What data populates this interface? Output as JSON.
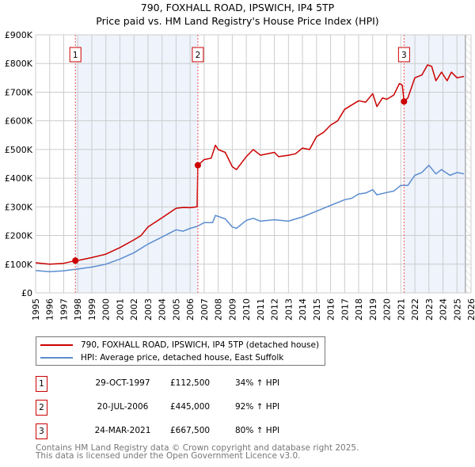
{
  "title": "790, FOXHALL ROAD, IPSWICH, IP4 5TP",
  "subtitle": "Price paid vs. HM Land Registry's House Price Index (HPI)",
  "colors": {
    "property": "#cc0000",
    "hpi": "#5b8dd0",
    "shade": "#eef3fc",
    "grid": "#cccccc"
  },
  "chart_data": {
    "type": "line",
    "title": "790, FOXHALL ROAD, IPSWICH, IP4 5TP",
    "subtitle": "Price paid vs. HM Land Registry's House Price Index (HPI)",
    "xlim": [
      1995,
      2026
    ],
    "ylim": [
      0,
      900000
    ],
    "grid": true,
    "x_ticks": [
      "1995",
      "1996",
      "1997",
      "1998",
      "1999",
      "2000",
      "2001",
      "2002",
      "2003",
      "2004",
      "2005",
      "2006",
      "2007",
      "2008",
      "2009",
      "2010",
      "2011",
      "2012",
      "2013",
      "2014",
      "2015",
      "2016",
      "2017",
      "2018",
      "2019",
      "2020",
      "2021",
      "2022",
      "2023",
      "2024",
      "2025",
      "2026"
    ],
    "y_ticks": [
      {
        "v": 0,
        "label": "£0"
      },
      {
        "v": 100000,
        "label": "£100K"
      },
      {
        "v": 200000,
        "label": "£200K"
      },
      {
        "v": 300000,
        "label": "£300K"
      },
      {
        "v": 400000,
        "label": "£400K"
      },
      {
        "v": 500000,
        "label": "£500K"
      },
      {
        "v": 600000,
        "label": "£600K"
      },
      {
        "v": 700000,
        "label": "£700K"
      },
      {
        "v": 800000,
        "label": "£800K"
      },
      {
        "v": 900000,
        "label": "£900K"
      }
    ],
    "shaded_ranges": [
      [
        1997.83,
        2006.55
      ],
      [
        2021.23,
        2025.6
      ]
    ],
    "hatched_from": 2025.6,
    "series": [
      {
        "name": "790, FOXHALL ROAD, IPSWICH, IP4 5TP (detached house)",
        "color": "#cc0000",
        "x": [
          1995,
          1996,
          1997,
          1997.83,
          1998,
          1999,
          2000,
          2001,
          2002,
          2002.5,
          2003,
          2004,
          2005,
          2005.5,
          2006,
          2006.5,
          2006.55,
          2007,
          2007.5,
          2007.8,
          2008,
          2008.5,
          2009,
          2009.3,
          2010,
          2010.5,
          2011,
          2012,
          2012.3,
          2013,
          2013.5,
          2014,
          2014.5,
          2015,
          2015.5,
          2016,
          2016.5,
          2017,
          2017.5,
          2018,
          2018.5,
          2019,
          2019.3,
          2019.7,
          2020,
          2020.5,
          2020.9,
          2021.1,
          2021.23,
          2021.5,
          2022,
          2022.5,
          2022.9,
          2023.2,
          2023.5,
          2023.9,
          2024.3,
          2024.6,
          2025,
          2025.5
        ],
        "values": [
          105000,
          100000,
          103000,
          112500,
          113000,
          123000,
          135000,
          158000,
          185000,
          200000,
          230000,
          262000,
          295000,
          298000,
          297000,
          300000,
          445000,
          465000,
          470000,
          515000,
          500000,
          490000,
          440000,
          430000,
          475000,
          500000,
          480000,
          490000,
          475000,
          480000,
          485000,
          505000,
          500000,
          545000,
          560000,
          585000,
          600000,
          640000,
          655000,
          670000,
          665000,
          695000,
          650000,
          680000,
          675000,
          690000,
          730000,
          725000,
          667500,
          680000,
          750000,
          760000,
          795000,
          790000,
          740000,
          770000,
          740000,
          770000,
          750000,
          755000
        ]
      },
      {
        "name": "HPI: Average price, detached house, East Suffolk",
        "color": "#5b8dd0",
        "x": [
          1995,
          1996,
          1997,
          1998,
          1999,
          2000,
          2001,
          2002,
          2003,
          2004,
          2005,
          2005.5,
          2006,
          2006.5,
          2007,
          2007.6,
          2007.8,
          2008.5,
          2009,
          2009.3,
          2010,
          2010.5,
          2011,
          2012,
          2013,
          2014,
          2015,
          2016,
          2017,
          2017.5,
          2018,
          2018.5,
          2019,
          2019.3,
          2020,
          2020.5,
          2021,
          2021.5,
          2022,
          2022.5,
          2023,
          2023.5,
          2023.9,
          2024.5,
          2025,
          2025.5
        ],
        "values": [
          78000,
          74000,
          77000,
          83000,
          90000,
          100000,
          118000,
          140000,
          170000,
          195000,
          220000,
          215000,
          225000,
          232000,
          245000,
          245000,
          270000,
          258000,
          230000,
          225000,
          253000,
          260000,
          250000,
          255000,
          250000,
          265000,
          285000,
          305000,
          325000,
          330000,
          345000,
          348000,
          360000,
          342000,
          350000,
          355000,
          375000,
          375000,
          410000,
          420000,
          445000,
          415000,
          430000,
          410000,
          420000,
          415000
        ]
      }
    ],
    "sales": [
      {
        "id": "1",
        "x": 1997.83,
        "value": 112500
      },
      {
        "id": "2",
        "x": 2006.55,
        "value": 445000
      },
      {
        "id": "3",
        "x": 2021.23,
        "value": 667500
      }
    ]
  },
  "legend": {
    "property": "790, FOXHALL ROAD, IPSWICH, IP4 5TP (detached house)",
    "hpi": "HPI: Average price, detached house, East Suffolk"
  },
  "transactions": [
    {
      "num": "1",
      "date": "29-OCT-1997",
      "price": "£112,500",
      "hpi": "34% ↑ HPI"
    },
    {
      "num": "2",
      "date": "20-JUL-2006",
      "price": "£445,000",
      "hpi": "92% ↑ HPI"
    },
    {
      "num": "3",
      "date": "24-MAR-2021",
      "price": "£667,500",
      "hpi": "80% ↑ HPI"
    }
  ],
  "footer": {
    "line1": "Contains HM Land Registry data © Crown copyright and database right 2025.",
    "line2": "This data is licensed under the Open Government Licence v3.0."
  }
}
